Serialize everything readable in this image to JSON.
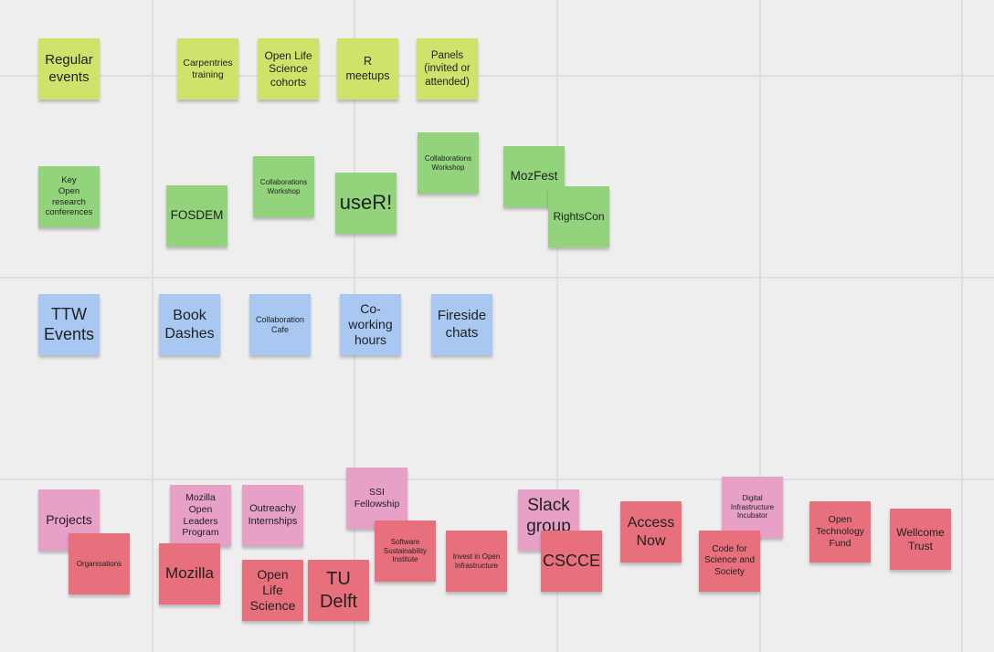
{
  "board": {
    "colors": {
      "background": "#eeeeee",
      "grid": "#dedede",
      "yellow": "#cfe36a",
      "green": "#92d37b",
      "blue": "#a8c8f2",
      "pink": "#e7a0c6",
      "red": "#e8707d"
    }
  },
  "rows": {
    "regular_events": {
      "header": "Regular\nevents",
      "notes": [
        "Carpentries\ntraining",
        "Open Life\nScience\ncohorts",
        "R\nmeetups",
        "Panels\n(invited or\nattended)"
      ]
    },
    "conferences": {
      "header": "Key\nOpen\nresearch\nconferences",
      "notes": [
        "FOSDEM",
        "Collaborations\nWorkshop",
        "useR!",
        "Collaborations\nWorkshop",
        "MozFest",
        "RightsCon"
      ]
    },
    "ttw_events": {
      "header": "TTW\nEvents",
      "notes": [
        "Book\nDashes",
        "Collaboration\nCafe",
        "Co-\nworking\nhours",
        "Fireside\nchats"
      ]
    },
    "projects": {
      "header": "Projects",
      "subheader": "Organisations",
      "notes": [
        "Mozilla\nOpen\nLeaders\nProgram",
        "Outreachy\nInternships",
        "SSI\nFellowship",
        "Slack\ngroup",
        "Digital\nInfrastructure\nIncubator",
        "Mozilla",
        "Open\nLife\nScience",
        "TU\nDelft",
        "Software\nSustainability\nInstitute",
        "Invest in Open\nInfrastructure",
        "CSCCE",
        "Access\nNow",
        "Code for\nScience and\nSociety",
        "Open\nTechnology\nFund",
        "Wellcome\nTrust"
      ]
    }
  }
}
